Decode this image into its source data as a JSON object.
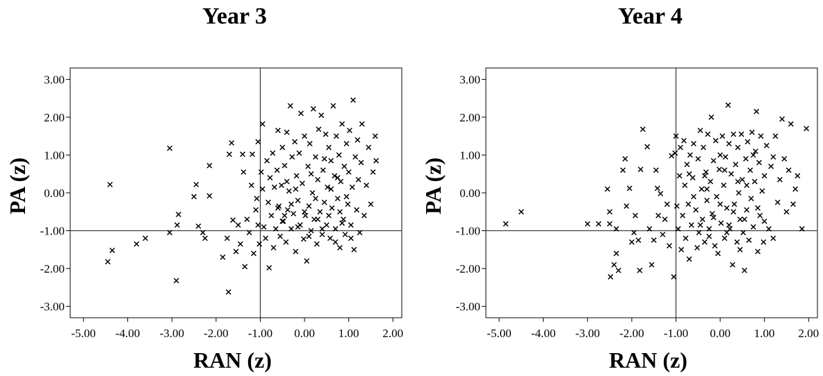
{
  "chart_data": [
    {
      "type": "scatter",
      "title": "Year 3",
      "xlabel": "RAN (z)",
      "ylabel": "PA (z)",
      "xlim": [
        -5.3,
        2.2
      ],
      "ylim": [
        -3.3,
        3.3
      ],
      "xticks": [
        "-5.00",
        "-4.00",
        "-3.00",
        "-2.00",
        "-1.00",
        "0.00",
        "1.00",
        "2.00"
      ],
      "yticks": [
        "3.00",
        "2.00",
        "1.00",
        "0.00",
        "-1.00",
        "-2.00",
        "-3.00"
      ],
      "reference_lines": {
        "x": -1.0,
        "y": -1.0
      },
      "marker": "x",
      "grid": false,
      "points": [
        [
          -4.4,
          0.22
        ],
        [
          -4.45,
          -1.82
        ],
        [
          -4.35,
          -1.52
        ],
        [
          -3.8,
          -1.35
        ],
        [
          -3.6,
          -1.2
        ],
        [
          -3.05,
          1.18
        ],
        [
          -3.05,
          -1.05
        ],
        [
          -2.85,
          -0.57
        ],
        [
          -2.88,
          -0.85
        ],
        [
          -2.9,
          -2.32
        ],
        [
          -2.5,
          -0.1
        ],
        [
          -2.45,
          0.22
        ],
        [
          -2.4,
          -0.88
        ],
        [
          -2.3,
          -1.05
        ],
        [
          -2.25,
          -1.2
        ],
        [
          -2.15,
          0.72
        ],
        [
          -2.15,
          -0.08
        ],
        [
          -1.85,
          -1.7
        ],
        [
          -1.75,
          -1.2
        ],
        [
          -1.7,
          1.02
        ],
        [
          -1.65,
          1.32
        ],
        [
          -1.62,
          -0.72
        ],
        [
          -1.55,
          -1.55
        ],
        [
          -1.72,
          -2.62
        ],
        [
          -1.5,
          -0.85
        ],
        [
          -1.45,
          -1.35
        ],
        [
          -1.4,
          1.02
        ],
        [
          -1.38,
          0.55
        ],
        [
          -1.35,
          -1.95
        ],
        [
          -1.3,
          -0.7
        ],
        [
          -1.25,
          -1.05
        ],
        [
          -1.2,
          0.2
        ],
        [
          -1.18,
          1.02
        ],
        [
          -1.15,
          -1.6
        ],
        [
          -1.1,
          -0.45
        ],
        [
          -1.08,
          -0.15
        ],
        [
          -1.05,
          -0.85
        ],
        [
          -1.05,
          1.35
        ],
        [
          -1.02,
          -1.35
        ],
        [
          -0.98,
          0.55
        ],
        [
          -0.95,
          1.82
        ],
        [
          -0.95,
          0.1
        ],
        [
          -0.92,
          -0.9
        ],
        [
          -0.88,
          -1.2
        ],
        [
          -0.85,
          0.85
        ],
        [
          -0.82,
          -0.25
        ],
        [
          -0.8,
          -1.98
        ],
        [
          -0.78,
          0.4
        ],
        [
          -0.75,
          -0.6
        ],
        [
          -0.72,
          1.05
        ],
        [
          -0.7,
          -1.45
        ],
        [
          -0.68,
          0.15
        ],
        [
          -0.65,
          -0.95
        ],
        [
          -0.62,
          0.6
        ],
        [
          -0.6,
          1.65
        ],
        [
          -0.58,
          -0.35
        ],
        [
          -0.55,
          -1.15
        ],
        [
          -0.52,
          0.2
        ],
        [
          -0.5,
          1.2
        ],
        [
          -0.48,
          -0.75
        ],
        [
          -0.45,
          0.72
        ],
        [
          -0.42,
          -1.3
        ],
        [
          -0.4,
          1.6
        ],
        [
          -0.38,
          -0.45
        ],
        [
          -0.35,
          0.05
        ],
        [
          -0.32,
          2.3
        ],
        [
          -0.3,
          -0.95
        ],
        [
          -0.28,
          0.95
        ],
        [
          -0.25,
          -0.55
        ],
        [
          -0.22,
          1.35
        ],
        [
          -0.2,
          -1.55
        ],
        [
          -0.18,
          0.45
        ],
        [
          -0.15,
          -0.2
        ],
        [
          -0.12,
          1.05
        ],
        [
          -0.1,
          -0.85
        ],
        [
          -0.08,
          2.1
        ],
        [
          -0.05,
          0.25
        ],
        [
          -0.02,
          -1.22
        ],
        [
          0.0,
          1.5
        ],
        [
          0.02,
          -0.6
        ],
        [
          0.05,
          -1.8
        ],
        [
          0.08,
          0.7
        ],
        [
          0.1,
          -0.35
        ],
        [
          0.12,
          1.3
        ],
        [
          0.15,
          -1.0
        ],
        [
          0.18,
          0.0
        ],
        [
          0.2,
          2.22
        ],
        [
          0.22,
          -0.7
        ],
        [
          0.25,
          0.95
        ],
        [
          0.28,
          -1.35
        ],
        [
          0.3,
          0.35
        ],
        [
          0.32,
          1.68
        ],
        [
          0.35,
          -0.5
        ],
        [
          0.38,
          2.05
        ],
        [
          0.4,
          -1.1
        ],
        [
          0.42,
          0.6
        ],
        [
          0.45,
          -0.25
        ],
        [
          0.48,
          1.55
        ],
        [
          0.5,
          -0.85
        ],
        [
          0.52,
          0.15
        ],
        [
          0.55,
          1.2
        ],
        [
          0.58,
          -1.2
        ],
        [
          0.6,
          0.85
        ],
        [
          0.62,
          -0.4
        ],
        [
          0.65,
          2.3
        ],
        [
          0.68,
          0.45
        ],
        [
          0.7,
          -0.95
        ],
        [
          0.72,
          1.5
        ],
        [
          0.75,
          -0.15
        ],
        [
          0.78,
          1.0
        ],
        [
          0.8,
          -1.45
        ],
        [
          0.82,
          0.3
        ],
        [
          0.85,
          1.82
        ],
        [
          0.88,
          -0.7
        ],
        [
          0.9,
          0.7
        ],
        [
          0.92,
          -1.1
        ],
        [
          0.95,
          1.3
        ],
        [
          0.98,
          -0.3
        ],
        [
          1.0,
          0.55
        ],
        [
          1.02,
          1.65
        ],
        [
          1.05,
          -0.85
        ],
        [
          1.08,
          0.15
        ],
        [
          1.1,
          2.45
        ],
        [
          1.12,
          -1.5
        ],
        [
          1.15,
          0.95
        ],
        [
          1.18,
          -0.45
        ],
        [
          1.2,
          1.4
        ],
        [
          1.22,
          0.35
        ],
        [
          1.25,
          -1.05
        ],
        [
          1.28,
          0.8
        ],
        [
          1.3,
          1.82
        ],
        [
          1.35,
          -0.6
        ],
        [
          1.4,
          0.2
        ],
        [
          1.45,
          1.2
        ],
        [
          1.5,
          -0.3
        ],
        [
          1.55,
          0.55
        ],
        [
          1.6,
          1.5
        ],
        [
          1.62,
          0.85
        ],
        [
          -0.6,
          -0.4
        ],
        [
          -0.45,
          -0.6
        ],
        [
          -0.3,
          -0.3
        ],
        [
          0.0,
          -0.5
        ],
        [
          0.3,
          -0.7
        ],
        [
          0.55,
          -0.6
        ],
        [
          0.8,
          -0.5
        ],
        [
          -0.2,
          0.1
        ],
        [
          0.15,
          0.5
        ],
        [
          0.45,
          0.9
        ],
        [
          0.75,
          0.4
        ],
        [
          -0.4,
          0.3
        ],
        [
          0.25,
          -0.15
        ],
        [
          0.6,
          0.1
        ],
        [
          0.95,
          -0.1
        ],
        [
          -0.15,
          -0.9
        ],
        [
          0.4,
          -0.95
        ],
        [
          0.7,
          -1.3
        ],
        [
          1.05,
          -1.2
        ],
        [
          -0.5,
          -0.75
        ],
        [
          0.1,
          -1.15
        ],
        [
          0.85,
          -0.8
        ]
      ]
    },
    {
      "type": "scatter",
      "title": "Year 4",
      "xlabel": "RAN (z)",
      "ylabel": "PA (z)",
      "xlim": [
        -5.3,
        2.2
      ],
      "ylim": [
        -3.3,
        3.3
      ],
      "xticks": [
        "-5.00",
        "-4.00",
        "-3.00",
        "-2.00",
        "-1.00",
        "0.00",
        "1.00",
        "2.00"
      ],
      "yticks": [
        "3.00",
        "2.00",
        "1.00",
        "0.00",
        "-1.00",
        "-2.00",
        "-3.00"
      ],
      "reference_lines": {
        "x": -1.0,
        "y": -1.0
      },
      "marker": "x",
      "grid": false,
      "points": [
        [
          -4.85,
          -0.82
        ],
        [
          -4.5,
          -0.5
        ],
        [
          -3.0,
          -0.82
        ],
        [
          -2.75,
          -0.82
        ],
        [
          -2.55,
          0.1
        ],
        [
          -2.5,
          -0.5
        ],
        [
          -2.5,
          -0.82
        ],
        [
          -2.48,
          -2.22
        ],
        [
          -2.4,
          -1.9
        ],
        [
          -2.35,
          -1.6
        ],
        [
          -2.35,
          -0.95
        ],
        [
          -2.3,
          -2.05
        ],
        [
          -2.2,
          0.6
        ],
        [
          -2.15,
          0.9
        ],
        [
          -2.12,
          -0.35
        ],
        [
          -2.05,
          0.12
        ],
        [
          -2.0,
          -1.3
        ],
        [
          -1.95,
          -1.05
        ],
        [
          -1.92,
          -0.6
        ],
        [
          -1.85,
          -1.25
        ],
        [
          -1.82,
          -2.05
        ],
        [
          -1.8,
          0.62
        ],
        [
          -1.75,
          1.68
        ],
        [
          -1.65,
          1.22
        ],
        [
          -1.6,
          -0.95
        ],
        [
          -1.55,
          -1.9
        ],
        [
          -1.5,
          -1.25
        ],
        [
          -1.45,
          0.6
        ],
        [
          -1.42,
          0.12
        ],
        [
          -1.4,
          -0.6
        ],
        [
          -1.35,
          -0.02
        ],
        [
          -1.3,
          -1.1
        ],
        [
          -1.25,
          -0.7
        ],
        [
          -1.2,
          -0.3
        ],
        [
          -1.15,
          -1.4
        ],
        [
          -1.1,
          0.98
        ],
        [
          -1.05,
          -2.22
        ],
        [
          -1.02,
          1.05
        ],
        [
          -1.0,
          1.5
        ],
        [
          -0.98,
          -0.35
        ],
        [
          -0.95,
          -0.95
        ],
        [
          -0.92,
          0.45
        ],
        [
          -0.9,
          1.2
        ],
        [
          -0.88,
          -1.5
        ],
        [
          -0.85,
          -0.6
        ],
        [
          -0.82,
          1.38
        ],
        [
          -0.8,
          0.2
        ],
        [
          -0.78,
          -1.2
        ],
        [
          -0.75,
          0.75
        ],
        [
          -0.72,
          -0.3
        ],
        [
          -0.7,
          -1.75
        ],
        [
          -0.68,
          1.0
        ],
        [
          -0.65,
          -0.85
        ],
        [
          -0.62,
          0.4
        ],
        [
          -0.6,
          1.3
        ],
        [
          -0.55,
          -0.45
        ],
        [
          -0.52,
          -1.45
        ],
        [
          -0.5,
          0.9
        ],
        [
          -0.48,
          -1.05
        ],
        [
          -0.45,
          1.65
        ],
        [
          -0.42,
          0.1
        ],
        [
          -0.4,
          -0.7
        ],
        [
          -0.38,
          1.2
        ],
        [
          -0.35,
          -1.3
        ],
        [
          -0.32,
          0.55
        ],
        [
          -0.3,
          -0.2
        ],
        [
          -0.28,
          1.55
        ],
        [
          -0.25,
          -0.95
        ],
        [
          -0.22,
          0.3
        ],
        [
          -0.2,
          2.0
        ],
        [
          -0.18,
          -0.55
        ],
        [
          -0.15,
          0.85
        ],
        [
          -0.12,
          -1.4
        ],
        [
          -0.1,
          1.38
        ],
        [
          -0.08,
          -0.1
        ],
        [
          -0.05,
          -1.6
        ],
        [
          -0.02,
          0.62
        ],
        [
          0.0,
          1.0
        ],
        [
          0.02,
          -0.8
        ],
        [
          0.05,
          1.5
        ],
        [
          0.08,
          0.2
        ],
        [
          0.1,
          -1.2
        ],
        [
          0.12,
          0.95
        ],
        [
          0.15,
          -0.4
        ],
        [
          0.18,
          2.32
        ],
        [
          0.2,
          1.3
        ],
        [
          0.22,
          -0.95
        ],
        [
          0.25,
          0.5
        ],
        [
          0.28,
          -1.9
        ],
        [
          0.3,
          1.55
        ],
        [
          0.32,
          -0.3
        ],
        [
          0.35,
          0.75
        ],
        [
          0.38,
          -1.3
        ],
        [
          0.4,
          1.2
        ],
        [
          0.42,
          0.0
        ],
        [
          0.45,
          -0.7
        ],
        [
          0.48,
          1.55
        ],
        [
          0.5,
          0.35
        ],
        [
          0.52,
          -1.05
        ],
        [
          0.55,
          -2.05
        ],
        [
          0.58,
          0.9
        ],
        [
          0.6,
          -0.45
        ],
        [
          0.62,
          1.35
        ],
        [
          0.65,
          -1.25
        ],
        [
          0.68,
          0.6
        ],
        [
          0.7,
          -0.15
        ],
        [
          0.72,
          1.6
        ],
        [
          0.75,
          -0.9
        ],
        [
          0.78,
          0.3
        ],
        [
          0.8,
          1.1
        ],
        [
          0.82,
          2.15
        ],
        [
          0.85,
          -1.55
        ],
        [
          0.88,
          0.8
        ],
        [
          0.9,
          -0.6
        ],
        [
          0.92,
          1.5
        ],
        [
          0.95,
          0.05
        ],
        [
          0.98,
          -1.3
        ],
        [
          1.0,
          0.45
        ],
        [
          1.05,
          1.25
        ],
        [
          1.1,
          -0.95
        ],
        [
          1.15,
          0.7
        ],
        [
          1.2,
          -1.2
        ],
        [
          1.25,
          1.5
        ],
        [
          1.3,
          -0.25
        ],
        [
          1.35,
          0.35
        ],
        [
          1.4,
          1.95
        ],
        [
          1.45,
          0.9
        ],
        [
          1.5,
          -0.5
        ],
        [
          1.55,
          0.6
        ],
        [
          1.6,
          1.82
        ],
        [
          1.65,
          -0.3
        ],
        [
          1.7,
          0.1
        ],
        [
          1.75,
          0.45
        ],
        [
          1.85,
          -0.95
        ],
        [
          1.95,
          1.7
        ],
        [
          -0.6,
          -0.1
        ],
        [
          -0.3,
          0.1
        ],
        [
          0.0,
          -0.3
        ],
        [
          0.3,
          -0.5
        ],
        [
          0.6,
          0.2
        ],
        [
          -0.45,
          -0.85
        ],
        [
          -0.15,
          -0.65
        ],
        [
          0.2,
          -0.85
        ],
        [
          0.55,
          -0.7
        ],
        [
          0.85,
          -0.4
        ],
        [
          -0.7,
          0.5
        ],
        [
          -0.35,
          0.45
        ],
        [
          0.1,
          0.6
        ],
        [
          0.4,
          0.3
        ],
        [
          0.75,
          1.0
        ],
        [
          -0.25,
          -1.15
        ],
        [
          0.15,
          -1.05
        ],
        [
          0.45,
          -1.5
        ],
        [
          1.0,
          -0.75
        ],
        [
          1.2,
          0.95
        ]
      ]
    }
  ]
}
